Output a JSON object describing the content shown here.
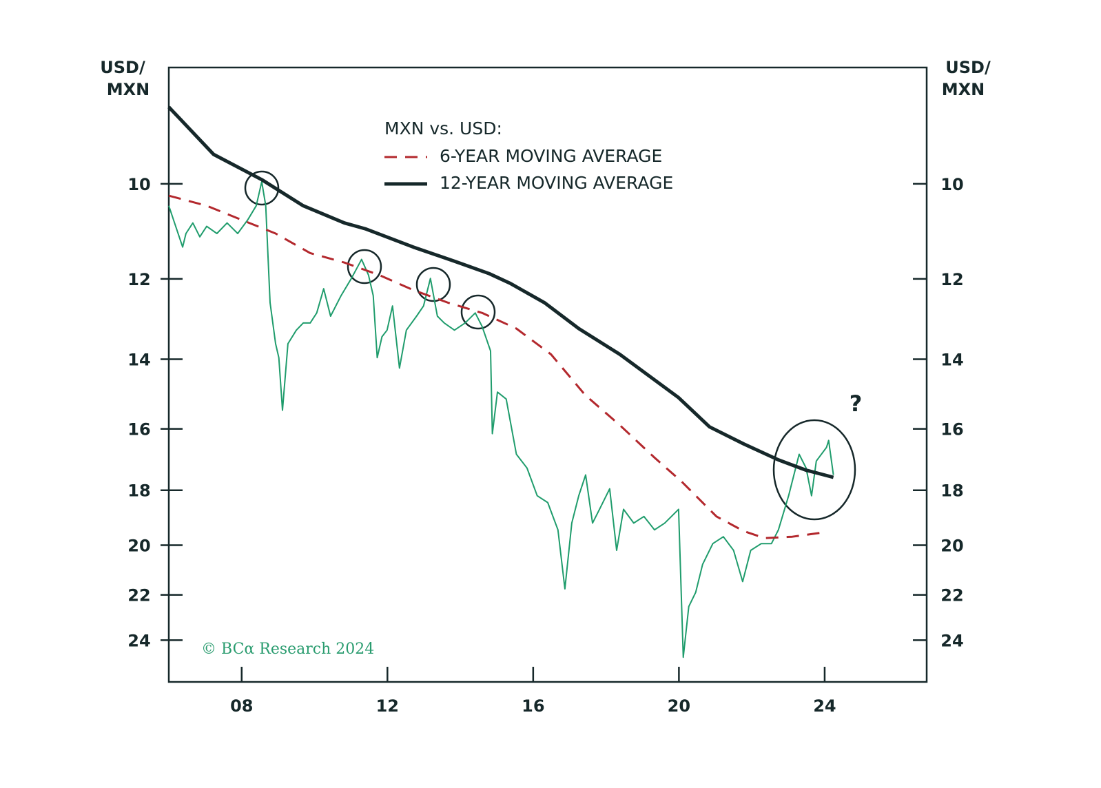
{
  "chart_data": {
    "type": "line",
    "ylabel": [
      "USD/",
      "MXN"
    ],
    "y2label": [
      "USD/",
      "MXN"
    ],
    "legend_title": "MXN vs. USD:",
    "annotations": [
      "?"
    ],
    "source": "© BCα Research 2024",
    "log_scale": true,
    "y_inverted": true,
    "xlim": [
      2006,
      2026.8
    ],
    "xticks": [
      {
        "value": 2008,
        "label": "08"
      },
      {
        "value": 2012,
        "label": "12"
      },
      {
        "value": 2016,
        "label": "16"
      },
      {
        "value": 2020,
        "label": "20"
      },
      {
        "value": 2024,
        "label": "24"
      }
    ],
    "ylim": [
      8,
      26
    ],
    "yticks": [
      10,
      12,
      14,
      16,
      18,
      20,
      22,
      24
    ],
    "y2lim": [
      8,
      26
    ],
    "y2ticks": [
      10,
      12,
      14,
      16,
      18,
      20,
      22,
      24
    ],
    "series": [
      {
        "color": "#1f9c6c",
        "style": "solid",
        "width": 2,
        "x": [
          2006.0,
          2006.19,
          2006.38,
          2006.47,
          2006.66,
          2006.85,
          2007.04,
          2007.32,
          2007.6,
          2007.89,
          2008.17,
          2008.4,
          2008.55,
          2008.66,
          2008.78,
          2008.93,
          2009.02,
          2009.12,
          2009.27,
          2009.5,
          2009.69,
          2009.88,
          2010.06,
          2010.25,
          2010.44,
          2010.73,
          2011.01,
          2011.29,
          2011.48,
          2011.61,
          2011.72,
          2011.85,
          2011.99,
          2012.14,
          2012.33,
          2012.52,
          2012.8,
          2012.99,
          2013.18,
          2013.37,
          2013.56,
          2013.84,
          2014.13,
          2014.41,
          2014.6,
          2014.83,
          2014.88,
          2015.02,
          2015.26,
          2015.54,
          2015.83,
          2016.11,
          2016.4,
          2016.68,
          2016.87,
          2017.06,
          2017.25,
          2017.44,
          2017.63,
          2017.82,
          2018.1,
          2018.29,
          2018.48,
          2018.76,
          2019.04,
          2019.33,
          2019.61,
          2019.99,
          2020.12,
          2020.27,
          2020.46,
          2020.65,
          2020.93,
          2021.22,
          2021.5,
          2021.75,
          2021.97,
          2022.26,
          2022.54,
          2022.73,
          2023.01,
          2023.3,
          2023.49,
          2023.64,
          2023.77,
          2024.05,
          2024.11,
          2024.24
        ],
        "values": [
          10.43,
          10.85,
          11.29,
          11.0,
          10.78,
          11.07,
          10.85,
          11.0,
          10.78,
          11.0,
          10.71,
          10.43,
          9.96,
          10.43,
          12.56,
          13.59,
          13.96,
          15.44,
          13.59,
          13.24,
          13.06,
          13.06,
          12.81,
          12.23,
          12.89,
          12.39,
          11.99,
          11.56,
          11.91,
          12.39,
          13.96,
          13.41,
          13.24,
          12.64,
          14.24,
          13.24,
          12.89,
          12.64,
          11.99,
          12.89,
          13.06,
          13.24,
          13.06,
          12.81,
          13.15,
          13.78,
          16.15,
          14.91,
          15.11,
          16.8,
          17.25,
          18.19,
          18.43,
          19.42,
          21.75,
          19.17,
          18.19,
          17.48,
          19.17,
          18.67,
          17.95,
          20.2,
          18.67,
          19.17,
          18.93,
          19.42,
          19.17,
          18.67,
          24.8,
          22.5,
          21.9,
          20.75,
          19.94,
          19.68,
          20.2,
          21.45,
          20.2,
          19.94,
          19.94,
          19.42,
          18.19,
          16.8,
          17.25,
          18.19,
          17.02,
          16.58,
          16.36,
          17.48
        ]
      },
      {
        "name": "6-YEAR MOVING AVERAGE",
        "color": "#b3282d",
        "style": "dashed",
        "width": 3,
        "x": [
          2006.0,
          2007.04,
          2007.98,
          2008.93,
          2009.88,
          2010.82,
          2011.77,
          2012.71,
          2013.66,
          2014.6,
          2015.54,
          2016.49,
          2017.43,
          2018.38,
          2019.33,
          2020.08,
          2021.03,
          2021.78,
          2022.35,
          2023.11,
          2024.05
        ],
        "values": [
          10.23,
          10.43,
          10.71,
          11.0,
          11.42,
          11.63,
          11.91,
          12.26,
          12.56,
          12.81,
          13.2,
          13.87,
          15.0,
          15.89,
          16.91,
          17.71,
          18.93,
          19.47,
          19.73,
          19.68,
          19.5
        ]
      },
      {
        "name": "12-YEAR MOVING AVERAGE",
        "color": "#16282a",
        "style": "solid",
        "width": 5,
        "x": [
          2006.0,
          2007.23,
          2008.55,
          2009.69,
          2010.82,
          2011.39,
          2012.71,
          2013.84,
          2014.79,
          2015.36,
          2016.31,
          2017.25,
          2018.38,
          2019.99,
          2020.84,
          2021.78,
          2022.73,
          2023.49,
          2024.24
        ],
        "values": [
          8.63,
          9.45,
          9.92,
          10.43,
          10.78,
          10.9,
          11.29,
          11.6,
          11.88,
          12.1,
          12.56,
          13.2,
          13.87,
          15.07,
          15.94,
          16.47,
          16.98,
          17.32,
          17.56
        ]
      }
    ]
  }
}
